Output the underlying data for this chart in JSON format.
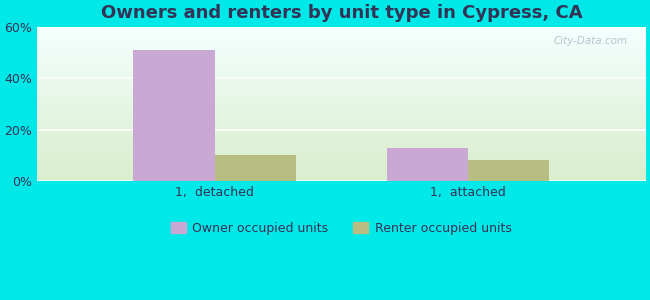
{
  "title": "Owners and renters by unit type in Cypress, CA",
  "categories": [
    "1,  detached",
    "1,  attached"
  ],
  "owner_values": [
    51,
    13
  ],
  "renter_values": [
    10,
    8
  ],
  "owner_color": "#c9a8d4",
  "renter_color": "#b8be82",
  "ylim": [
    0,
    60
  ],
  "yticks": [
    0,
    20,
    40,
    60
  ],
  "ytick_labels": [
    "0%",
    "20%",
    "40%",
    "60%"
  ],
  "bar_width": 0.32,
  "title_fontsize": 13,
  "tick_fontsize": 9,
  "legend_labels": [
    "Owner occupied units",
    "Renter occupied units"
  ],
  "watermark": "City-Data.com",
  "outer_bg": "#00e8e8",
  "plot_bg_bottom": "#d8eecc",
  "plot_bg_top": "#f5ffff",
  "text_color": "#333355"
}
